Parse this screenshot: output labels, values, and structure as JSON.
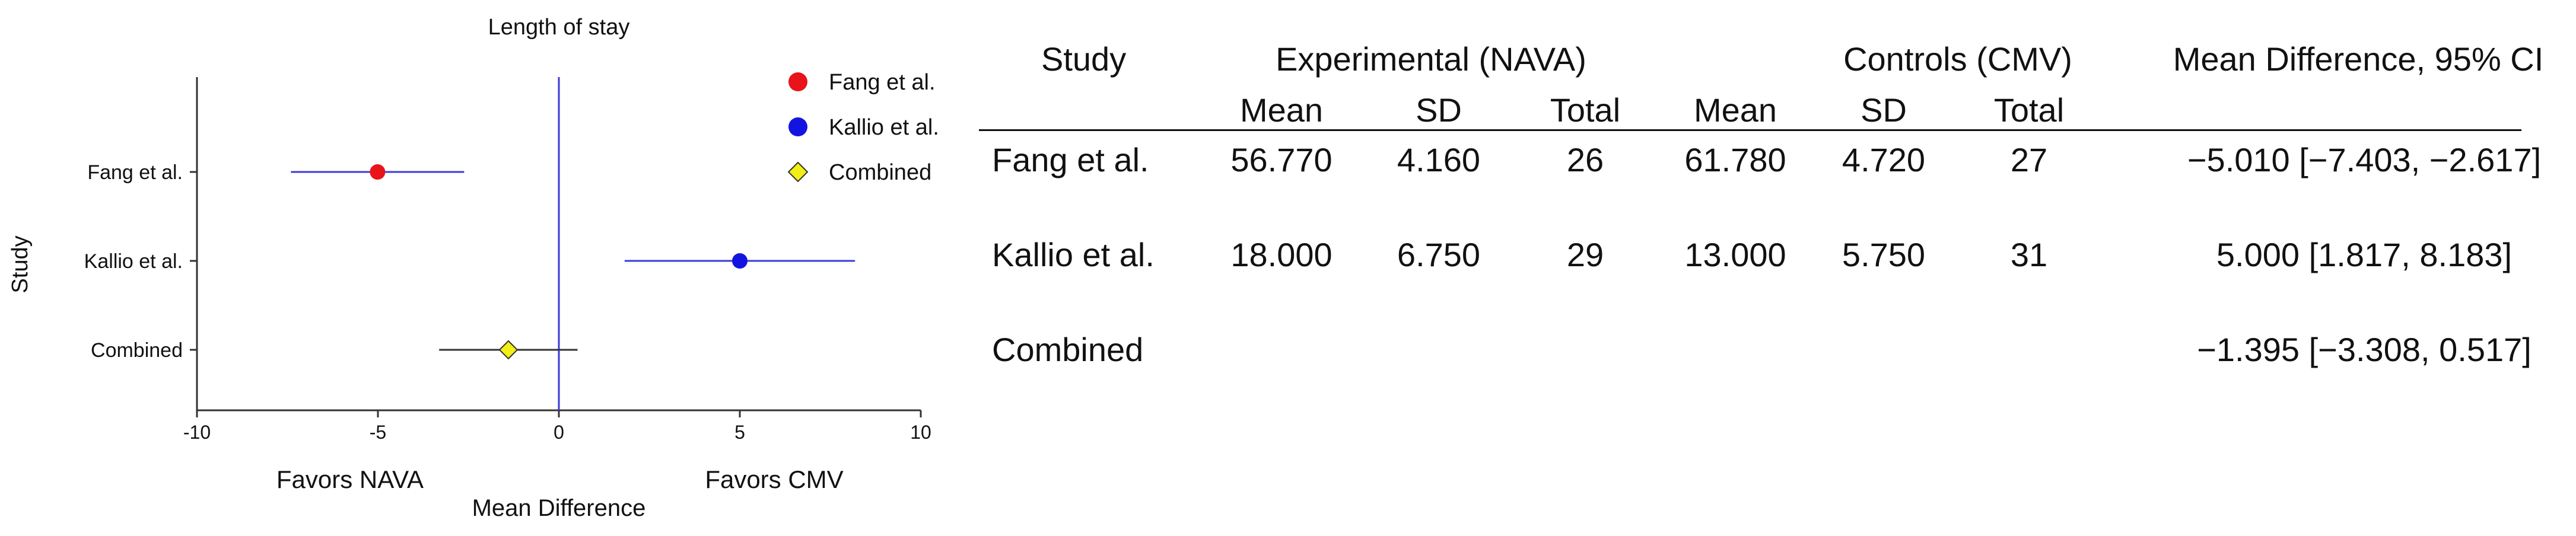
{
  "chart_data": {
    "type": "scatter",
    "title": "Length of stay",
    "xlabel": "Mean Difference",
    "ylabel": "Study",
    "xlim": [
      -10,
      10
    ],
    "x_ticks": [
      "-10",
      "-5",
      "0",
      "5",
      "10"
    ],
    "favors_left": "Favors NAVA",
    "favors_right": "Favors CMV",
    "legend_position": "top-right",
    "categories": [
      "Fang et al.",
      "Kallio et al.",
      "Combined"
    ],
    "series": [
      {
        "name": "Fang et al.",
        "marker": "circle",
        "color": "#e8141a",
        "ci_color": "#3a3ad8",
        "x": -5.01,
        "ci": [
          -7.403,
          -2.617
        ]
      },
      {
        "name": "Kallio et al.",
        "marker": "circle",
        "color": "#1414e0",
        "ci_color": "#3a3ad8",
        "x": 5.0,
        "ci": [
          1.817,
          8.183
        ]
      },
      {
        "name": "Combined",
        "marker": "diamond",
        "color": "#f2ef14",
        "ci_color": "#333333",
        "x": -1.395,
        "ci": [
          -3.308,
          0.517
        ]
      }
    ],
    "reference_line": 0,
    "axis_color": "#333333",
    "reference_color": "#3a3ad8"
  },
  "table": {
    "group_headers": {
      "study": "Study",
      "experimental": "Experimental (NAVA)",
      "controls": "Controls (CMV)",
      "effect": "Mean Difference, 95% CI"
    },
    "sub_headers": {
      "exp_mean": "Mean",
      "exp_sd": "SD",
      "exp_total": "Total",
      "ctl_mean": "Mean",
      "ctl_sd": "SD",
      "ctl_total": "Total"
    },
    "rows": [
      {
        "study": "Fang et al.",
        "exp_mean": "56.770",
        "exp_sd": "4.160",
        "exp_total": "26",
        "ctl_mean": "61.780",
        "ctl_sd": "4.720",
        "ctl_total": "27",
        "effect": "−5.010 [−7.403, −2.617]"
      },
      {
        "study": "Kallio et al.",
        "exp_mean": "18.000",
        "exp_sd": "6.750",
        "exp_total": "29",
        "ctl_mean": "13.000",
        "ctl_sd": "5.750",
        "ctl_total": "31",
        "effect": "5.000 [1.817, 8.183]"
      },
      {
        "study": "Combined",
        "exp_mean": "",
        "exp_sd": "",
        "exp_total": "",
        "ctl_mean": "",
        "ctl_sd": "",
        "ctl_total": "",
        "effect": "−1.395 [−3.308, 0.517]"
      }
    ]
  }
}
